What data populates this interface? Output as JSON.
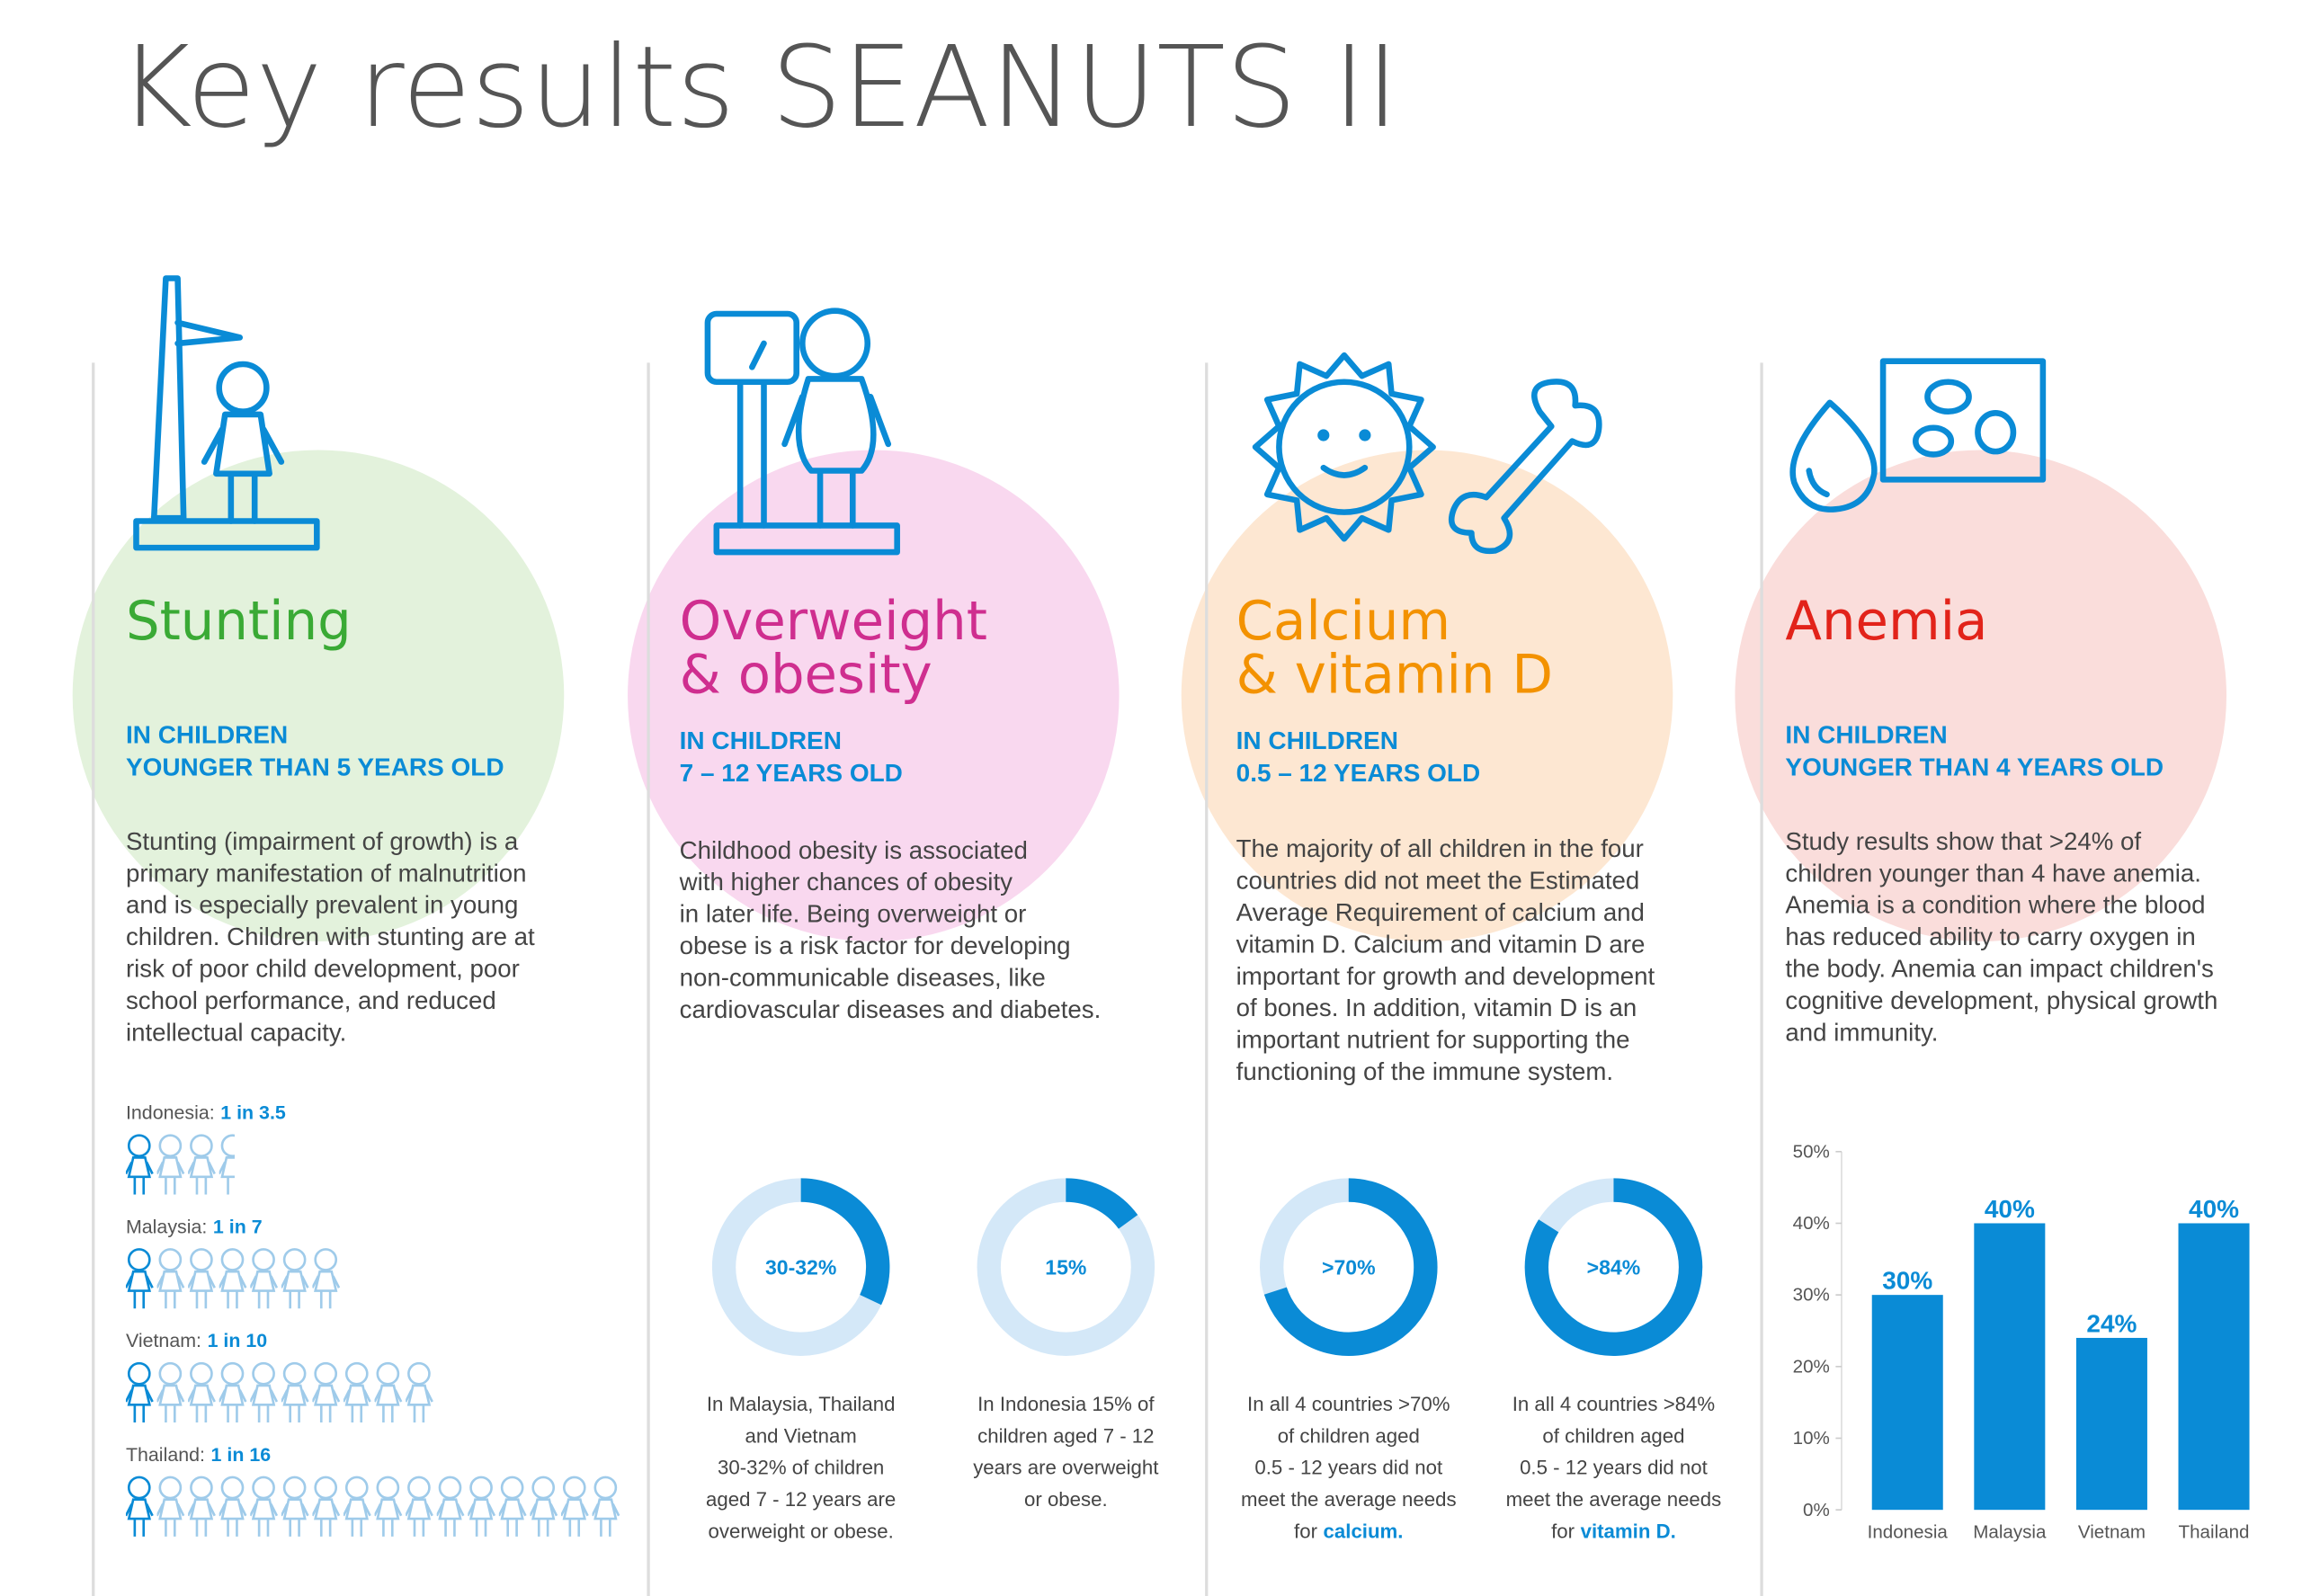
{
  "title": "Key results SEANUTS II",
  "sections": [
    {
      "heading": [
        "Stunting"
      ],
      "color": "#3aaa35",
      "circle": "#e3f2dc",
      "subheading": [
        "IN CHILDREN",
        "YOUNGER THAN 5 YEARS OLD"
      ],
      "body": [
        "Stunting (impairment of growth) is a",
        "primary manifestation of malnutrition",
        "and is especially prevalent in young",
        "children. Children with stunting are at",
        "risk of poor child development, poor",
        "school performance, and reduced",
        "intellectual capacity."
      ]
    },
    {
      "heading": [
        "Overweight",
        "& obesity"
      ],
      "color": "#cf2e8f",
      "circle": "#f9d8ef",
      "subheading": [
        "IN CHILDREN",
        "7 – 12 YEARS OLD"
      ],
      "body": [
        "Childhood obesity is associated",
        "with higher chances of obesity",
        "in later life. Being overweight or",
        "obese is a risk factor for developing",
        "non-communicable diseases, like",
        "cardiovascular diseases and diabetes."
      ]
    },
    {
      "heading": [
        "Calcium",
        "& vitamin D"
      ],
      "color": "#f39200",
      "circle": "#fde7d2",
      "subheading": [
        "IN CHILDREN",
        "0.5 – 12 YEARS OLD"
      ],
      "body": [
        "The majority of all children in the four",
        "countries did not meet the Estimated",
        "Average Requirement of calcium and",
        "vitamin D. Calcium and vitamin D are",
        "important for growth and development",
        "of bones. In addition, vitamin D is an",
        "important nutrient for supporting the",
        "functioning of the immune system."
      ]
    },
    {
      "heading": [
        "Anemia"
      ],
      "color": "#e2231a",
      "circle": "#fadddb",
      "subheading": [
        "IN CHILDREN",
        "YOUNGER THAN 4 YEARS OLD"
      ],
      "body": [
        "Study results show that >24% of",
        "children younger than 4 have anemia.",
        "Anemia is a condition where the blood",
        "has reduced ability to carry oxygen in",
        "the body. Anemia can impact children's",
        "cognitive development, physical growth",
        "and immunity."
      ]
    }
  ],
  "chart_data": [
    {
      "type": "pictogram",
      "categories": [
        "Indonesia:",
        "Malaysia:",
        "Vietnam:",
        "Thailand:"
      ],
      "values": [
        3.5,
        7,
        10,
        16
      ],
      "value_labels": [
        "1 in 3.5",
        "1 in 7",
        "1 in 10",
        "1 in 16"
      ],
      "color": "#0a8bd6",
      "light_color": "#9fcbea"
    },
    {
      "type": "donut",
      "values": [
        32,
        15,
        70,
        84
      ],
      "value_labels": [
        "30-32%",
        "15%",
        ">70%",
        ">84%"
      ],
      "color": "#0a8bd6",
      "track_color": "#d4e8f8",
      "captions": [
        {
          "lines": [
            "In Malaysia, Thailand",
            "and Vietnam",
            "30-32% of children",
            "aged 7 - 12 years are",
            "overweight or obese."
          ]
        },
        {
          "lines": [
            "In Indonesia 15% of",
            "children aged 7 - 12",
            "years are overweight",
            "or obese."
          ]
        },
        {
          "lines": [
            "In all 4 countries >70%",
            "of children aged",
            "0.5 - 12 years did not",
            "meet the average needs"
          ],
          "tail": "for",
          "emphasis": "calcium."
        },
        {
          "lines": [
            "In all 4 countries >84%",
            "of children aged",
            "0.5 - 12 years did not",
            "meet the average needs"
          ],
          "tail": "for",
          "emphasis": "vitamin D."
        }
      ]
    },
    {
      "type": "bar",
      "categories": [
        "Indonesia",
        "Malaysia",
        "Vietnam",
        "Thailand"
      ],
      "values": [
        30,
        40,
        24,
        40
      ],
      "value_labels": [
        "30%",
        "40%",
        "24%",
        "40%"
      ],
      "color": "#0a8bd6",
      "ylim": [
        0,
        50
      ],
      "yticks": [
        {
          "value": 0,
          "label": "0%"
        },
        {
          "value": 10,
          "label": "10%"
        },
        {
          "value": 20,
          "label": "20%"
        },
        {
          "value": 30,
          "label": "30%"
        },
        {
          "value": 40,
          "label": "40%"
        },
        {
          "value": 50,
          "label": "50%"
        }
      ]
    }
  ]
}
